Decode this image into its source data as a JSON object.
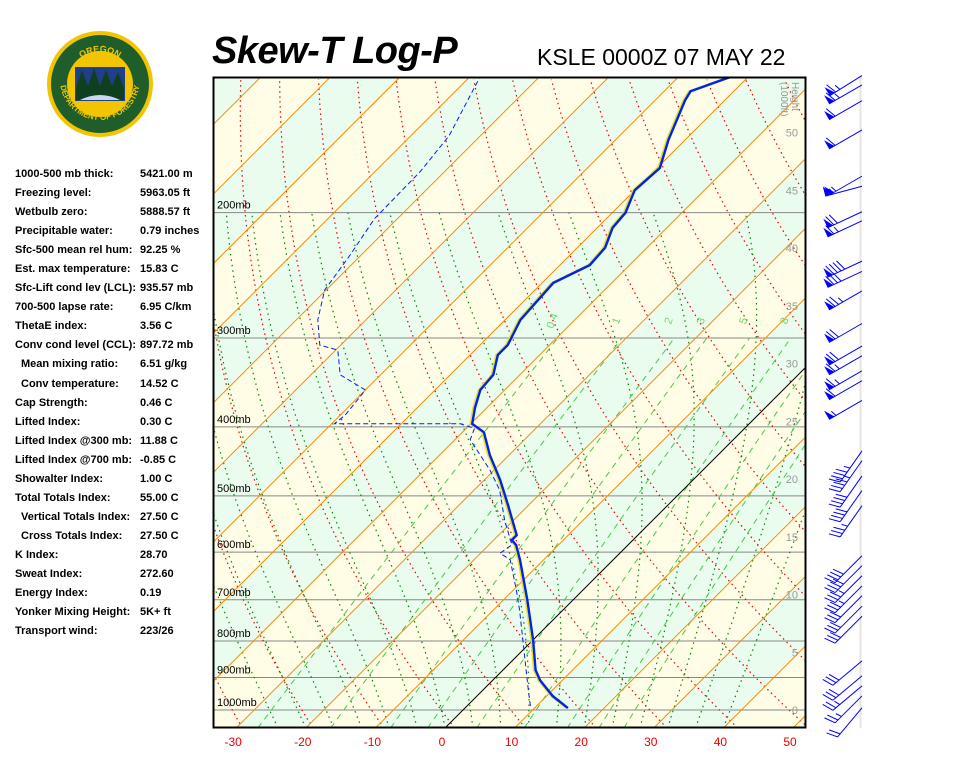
{
  "header": {
    "title": "Skew-T Log-P",
    "station": "KSLE 0000Z 07 MAY 22"
  },
  "logo": {
    "text_top": "OREGON",
    "text_bottom": "DEPARTMENT OF FORESTRY",
    "colors": {
      "ring": "#f2c500",
      "field": "#1f5e2a"
    }
  },
  "stats": [
    {
      "label": "1000-500 mb thick:",
      "value": "5421.00 m"
    },
    {
      "label": "Freezing level:",
      "value": "5963.05 ft"
    },
    {
      "label": "Wetbulb zero:",
      "value": "5888.57 ft"
    },
    {
      "label": "Precipitable water:",
      "value": "0.79 inches"
    },
    {
      "label": "Sfc-500 mean rel hum:",
      "value": "92.25 %"
    },
    {
      "label": "Est. max temperature:",
      "value": "15.83 C"
    },
    {
      "label": "Sfc-Lift cond lev (LCL):",
      "value": "935.57 mb"
    },
    {
      "label": "700-500 lapse rate:",
      "value": "6.95 C/km"
    },
    {
      "label": "ThetaE index:",
      "value": "3.56 C"
    },
    {
      "label": "Conv cond level (CCL):",
      "value": "897.72 mb"
    },
    {
      "label": "Mean mixing ratio:",
      "value": "6.51 g/kg",
      "indent": true
    },
    {
      "label": "Conv temperature:",
      "value": "14.52 C",
      "indent": true
    },
    {
      "label": "Cap Strength:",
      "value": "0.46 C"
    },
    {
      "label": "Lifted Index:",
      "value": "0.30 C"
    },
    {
      "label": "Lifted Index @300 mb:",
      "value": "11.88 C"
    },
    {
      "label": "Lifted Index @700 mb:",
      "value": "-0.85 C"
    },
    {
      "label": "Showalter Index:",
      "value": "1.00 C"
    },
    {
      "label": "Total Totals Index:",
      "value": "55.00 C"
    },
    {
      "label": "Vertical Totals Index:",
      "value": "27.50 C",
      "indent": true
    },
    {
      "label": "Cross Totals Index:",
      "value": "27.50 C",
      "indent": true
    },
    {
      "label": "K Index:",
      "value": "28.70"
    },
    {
      "label": "Sweat Index:",
      "value": "272.60"
    },
    {
      "label": "Energy Index:",
      "value": "0.19"
    },
    {
      "label": "Yonker Mixing Height:",
      "value": "5K+ ft"
    },
    {
      "label": "Transport wind:",
      "value": "223/26"
    }
  ],
  "chart_data": {
    "type": "line",
    "title": "Skew-T Log-P",
    "x_ticks": [
      "-30",
      "-20",
      "-10",
      "0",
      "10",
      "20",
      "30",
      "40",
      "50"
    ],
    "xlim": [
      -30,
      50
    ],
    "pressure_levels": [
      1000,
      900,
      800,
      700,
      600,
      500,
      400,
      300,
      200
    ],
    "pressure_labels": [
      "1000mb",
      "900mb",
      "800mb",
      "700mb",
      "600mb",
      "500mb",
      "400mb",
      "300mb",
      "200mb"
    ],
    "height_axis": {
      "title": "Height",
      "unit": "(1000ft)",
      "ticks": [
        "0",
        "5",
        "10",
        "15",
        "20",
        "25",
        "30",
        "35",
        "40",
        "45",
        "50"
      ]
    },
    "mixing_ratio_labels": [
      "0.4",
      "1",
      "2",
      "3",
      "5",
      "8"
    ],
    "colors": {
      "temperature": "#0022ee",
      "dewpoint": "#0022ee",
      "isotherm": "#ff8800",
      "dry_adiabat": "#ee0000",
      "moist_adiabat": "#008800",
      "mixing_ratio": "#44cc44",
      "band_a": "#fffde6",
      "band_b": "#eafcee",
      "x_tick": "#ee0000"
    },
    "series": [
      {
        "name": "temperature",
        "p": [
          994,
          956,
          908,
          879,
          797,
          700,
          615,
          586,
          577,
          568,
          515,
          475,
          438,
          407,
          396,
          376,
          355,
          338,
          317,
          307,
          283,
          251,
          237,
          224,
          210,
          200,
          186,
          173,
          158,
          139,
          135,
          129
        ],
        "t": [
          14.8,
          10.9,
          6.8,
          4.7,
          0,
          -6.6,
          -13.4,
          -16.1,
          -17.4,
          -17.4,
          -23,
          -27.7,
          -32.8,
          -36.9,
          -39.8,
          -41.7,
          -43.5,
          -43.8,
          -46,
          -46,
          -47.8,
          -48.4,
          -45.7,
          -46,
          -47.8,
          -48.1,
          -50,
          -49.6,
          -52.4,
          -55.7,
          -56.2,
          -52.6
        ]
      },
      {
        "name": "dewpoint",
        "p": [
          987,
          937,
          724,
          678,
          615,
          602,
          586,
          541,
          491,
          460,
          417,
          402,
          396,
          396,
          385,
          355,
          338,
          312,
          307,
          283,
          257,
          229,
          204,
          175,
          156,
          129
        ],
        "t": [
          9.1,
          6.5,
          -6.2,
          -9.6,
          -14.8,
          -17.2,
          -16.7,
          -21.3,
          -26.3,
          -30.6,
          -37.8,
          -38.8,
          -41.5,
          -59.6,
          -59.3,
          -60,
          -65.8,
          -69.7,
          -73,
          -76.9,
          -80.2,
          -81.6,
          -83.3,
          -83.5,
          -84.5,
          -88.5
        ]
      }
    ],
    "winds": [
      {
        "p": 130,
        "dir": 238,
        "kt": 65
      },
      {
        "p": 134,
        "dir": 240,
        "kt": 65
      },
      {
        "p": 141,
        "dir": 240,
        "kt": 60
      },
      {
        "p": 155,
        "dir": 240,
        "kt": 60
      },
      {
        "p": 180,
        "dir": 240,
        "kt": 55
      },
      {
        "p": 186,
        "dir": 255,
        "kt": 55
      },
      {
        "p": 202,
        "dir": 245,
        "kt": 70
      },
      {
        "p": 208,
        "dir": 245,
        "kt": 65
      },
      {
        "p": 237,
        "dir": 245,
        "kt": 90
      },
      {
        "p": 245,
        "dir": 245,
        "kt": 80
      },
      {
        "p": 261,
        "dir": 240,
        "kt": 75
      },
      {
        "p": 290,
        "dir": 240,
        "kt": 70
      },
      {
        "p": 312,
        "dir": 240,
        "kt": 70
      },
      {
        "p": 322,
        "dir": 240,
        "kt": 65
      },
      {
        "p": 338,
        "dir": 240,
        "kt": 65
      },
      {
        "p": 349,
        "dir": 240,
        "kt": 60
      },
      {
        "p": 372,
        "dir": 240,
        "kt": 55
      },
      {
        "p": 438,
        "dir": 215,
        "kt": 45
      },
      {
        "p": 452,
        "dir": 215,
        "kt": 45
      },
      {
        "p": 475,
        "dir": 215,
        "kt": 40
      },
      {
        "p": 498,
        "dir": 215,
        "kt": 40
      },
      {
        "p": 523,
        "dir": 215,
        "kt": 35
      },
      {
        "p": 615,
        "dir": 225,
        "kt": 40
      },
      {
        "p": 635,
        "dir": 225,
        "kt": 40
      },
      {
        "p": 656,
        "dir": 225,
        "kt": 35
      },
      {
        "p": 678,
        "dir": 225,
        "kt": 35
      },
      {
        "p": 700,
        "dir": 225,
        "kt": 30
      },
      {
        "p": 724,
        "dir": 225,
        "kt": 30
      },
      {
        "p": 748,
        "dir": 225,
        "kt": 30
      },
      {
        "p": 864,
        "dir": 230,
        "kt": 30
      },
      {
        "p": 907,
        "dir": 230,
        "kt": 30
      },
      {
        "p": 937,
        "dir": 230,
        "kt": 25
      },
      {
        "p": 968,
        "dir": 225,
        "kt": 25
      },
      {
        "p": 1006,
        "dir": 220,
        "kt": 20
      }
    ]
  }
}
